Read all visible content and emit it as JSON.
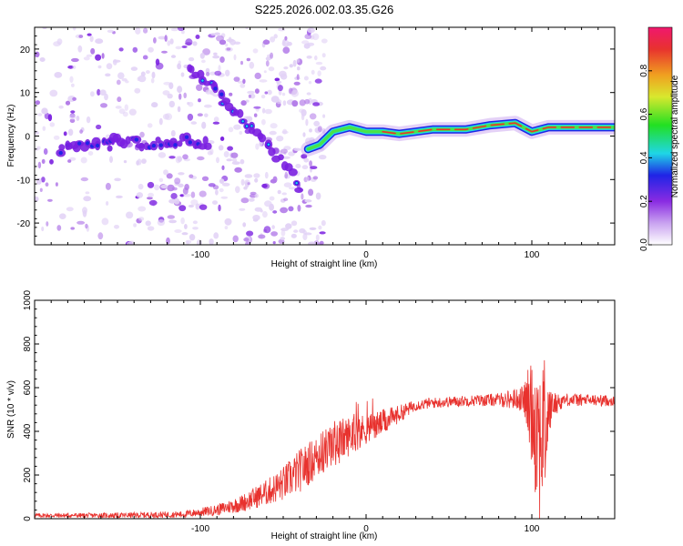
{
  "title": "S225.2026.002.03.35.G26",
  "colors": {
    "axis": "#000000",
    "snr_line": "#e8322e",
    "blob_light": "#e2d2f6",
    "blob_mid": "#b27ae8",
    "blob_dark": "#7a1fe0",
    "band_blue": "#1f24e6",
    "band_cyan": "#1fd6e6",
    "band_green": "#4ae24a",
    "band_core": "#e8322e"
  },
  "chart_data": [
    {
      "type": "heatmap",
      "name": "spectrogram",
      "xlabel": "Height of straight line (km)",
      "ylabel": "Frequency (Hz)",
      "xlim": [
        -200,
        150
      ],
      "ylim": [
        -25,
        25
      ],
      "xticks": [
        -100,
        0,
        100
      ],
      "xtick_labels": [
        "-100",
        "0",
        "100"
      ],
      "yticks": [
        20,
        10,
        0,
        -10,
        -20
      ],
      "ytick_labels": [
        "20",
        "10",
        "0",
        "-10",
        "-20"
      ],
      "colorbar": {
        "label": "Normalized spectral amplitude",
        "range": [
          0.0,
          1.0
        ],
        "ticks": [
          0.0,
          0.2,
          0.4,
          0.6,
          0.8
        ],
        "tick_labels": [
          "0.0",
          "0.2",
          "0.4",
          "0.6",
          "0.8"
        ],
        "colormap": [
          "#ffffff",
          "#c9a2f0",
          "#8a2be2",
          "#1f24e6",
          "#1fd6e6",
          "#22e022",
          "#d8e82e",
          "#f0a020",
          "#e8322e",
          "#f0186e"
        ]
      },
      "ridges": [
        {
          "name": "descending-ridge",
          "points": [
            [
              -107,
              15
            ],
            [
              -98,
              13
            ],
            [
              -90,
              10
            ],
            [
              -80,
              6
            ],
            [
              -70,
              2
            ],
            [
              -60,
              -2
            ],
            [
              -50,
              -6
            ],
            [
              -45,
              -8
            ],
            [
              -40,
              -12
            ]
          ]
        },
        {
          "name": "low-frequency-ridge",
          "points": [
            [
              -185,
              -3
            ],
            [
              -170,
              -2
            ],
            [
              -150,
              -1
            ],
            [
              -130,
              -2
            ],
            [
              -110,
              -1
            ],
            [
              -95,
              -2
            ]
          ]
        },
        {
          "name": "carrier-band",
          "points": [
            [
              -35,
              -3
            ],
            [
              -28,
              -2
            ],
            [
              -20,
              1
            ],
            [
              -10,
              2
            ],
            [
              0,
              1
            ],
            [
              10,
              1
            ],
            [
              20,
              0.5
            ],
            [
              40,
              1.5
            ],
            [
              60,
              1.5
            ],
            [
              75,
              2.5
            ],
            [
              90,
              3
            ],
            [
              100,
              1
            ],
            [
              110,
              2
            ],
            [
              130,
              2
            ],
            [
              150,
              2
            ]
          ],
          "amplitude": 0.9
        }
      ]
    },
    {
      "type": "line",
      "name": "snr",
      "xlabel": "Height of straight line (km)",
      "ylabel": "SNR (10 * v/v)",
      "xlim": [
        -200,
        150
      ],
      "ylim": [
        0,
        1000
      ],
      "xticks": [
        -100,
        0,
        100
      ],
      "xtick_labels": [
        "-100",
        "0",
        "100"
      ],
      "yticks": [
        0,
        200,
        400,
        600,
        800,
        1000
      ],
      "ytick_labels": [
        "0",
        "200",
        "400",
        "600",
        "800",
        "1000"
      ],
      "envelope": {
        "x": [
          -200,
          -150,
          -110,
          -90,
          -75,
          -60,
          -50,
          -40,
          -30,
          -20,
          -10,
          0,
          10,
          20,
          30,
          40,
          60,
          80,
          95,
          100,
          103,
          105,
          108,
          112,
          120,
          150
        ],
        "mean": [
          15,
          15,
          20,
          40,
          70,
          120,
          160,
          220,
          280,
          340,
          380,
          410,
          440,
          480,
          520,
          530,
          540,
          545,
          550,
          500,
          430,
          380,
          420,
          520,
          545,
          540
        ],
        "spread": [
          10,
          12,
          15,
          25,
          40,
          60,
          80,
          100,
          100,
          110,
          90,
          70,
          60,
          40,
          25,
          25,
          25,
          30,
          60,
          250,
          380,
          420,
          300,
          60,
          30,
          25
        ]
      }
    }
  ]
}
